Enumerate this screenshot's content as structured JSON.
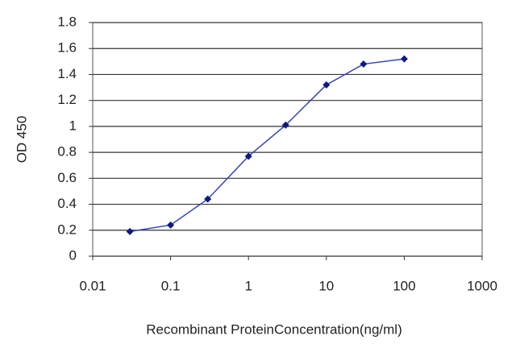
{
  "chart_data": {
    "type": "line",
    "x_label": "Recombinant ProteinConcentration(ng/ml)",
    "y_label": "OD 450",
    "x": [
      0.03,
      0.1,
      0.3,
      1,
      3,
      10,
      30,
      100
    ],
    "series": [
      {
        "color": "#3344bb",
        "marker_color": "#0d1a80",
        "values": [
          0.19,
          0.24,
          0.44,
          0.77,
          1.01,
          1.32,
          1.48,
          1.52
        ]
      }
    ],
    "xlim": [
      0.01,
      1000
    ],
    "xticks": [
      0.01,
      0.1,
      1,
      10,
      100,
      1000
    ],
    "xlog": true,
    "ylim": [
      0,
      1.8
    ],
    "yticks": [
      0,
      0.2,
      0.4,
      0.6,
      0.8,
      1,
      1.2,
      1.4,
      1.6,
      1.8
    ],
    "grid": true
  }
}
